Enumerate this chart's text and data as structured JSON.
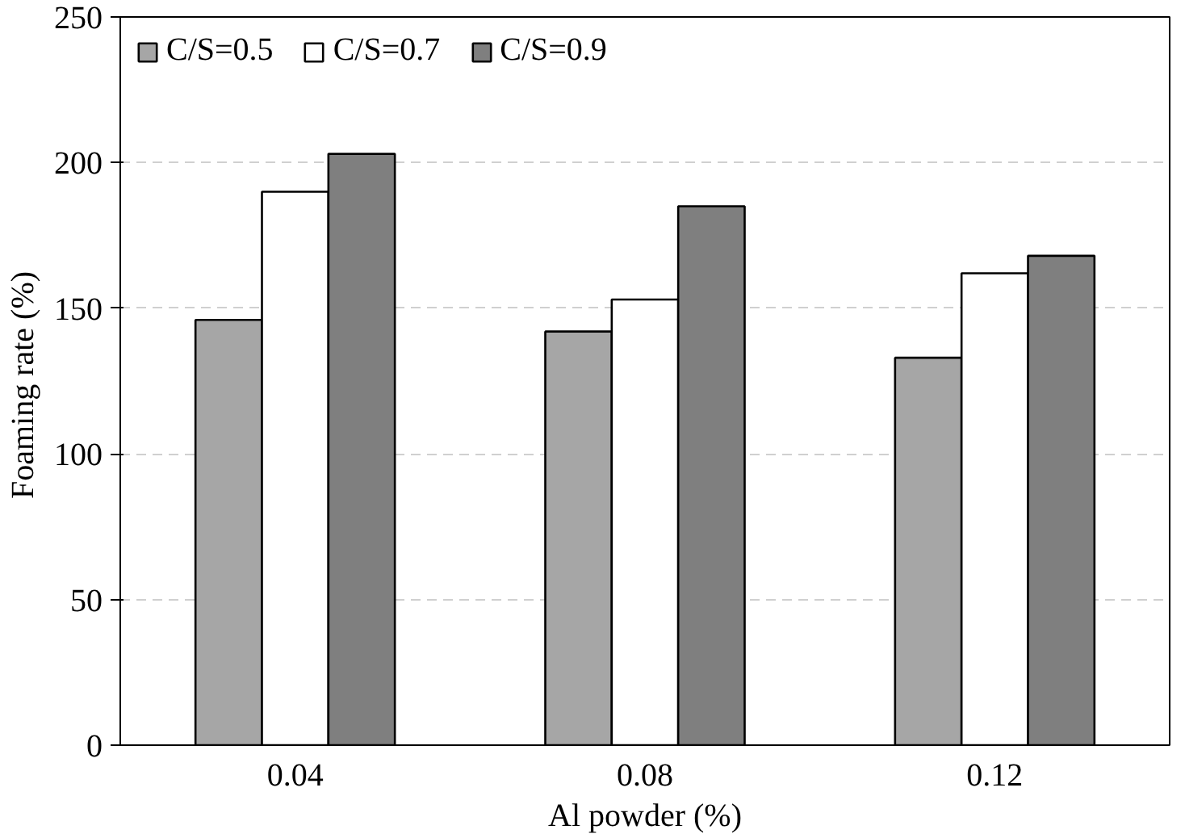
{
  "chart_data": {
    "type": "bar",
    "xlabel": "Al powder (%)",
    "ylabel": "Foaming  rate (%)",
    "categories": [
      "0.04",
      "0.08",
      "0.12"
    ],
    "series": [
      {
        "name": "C/S=0.5",
        "color": "#a6a6a6",
        "values": [
          146,
          142,
          133
        ]
      },
      {
        "name": "C/S=0.7",
        "color": "#ffffff",
        "values": [
          190,
          153,
          162
        ]
      },
      {
        "name": "C/S=0.9",
        "color": "#7f7f7f",
        "values": [
          203,
          185,
          168
        ]
      }
    ],
    "ylim": [
      0,
      250
    ],
    "yticks": [
      0,
      50,
      100,
      150,
      200,
      250
    ],
    "grid": "y",
    "legend": "top left"
  }
}
